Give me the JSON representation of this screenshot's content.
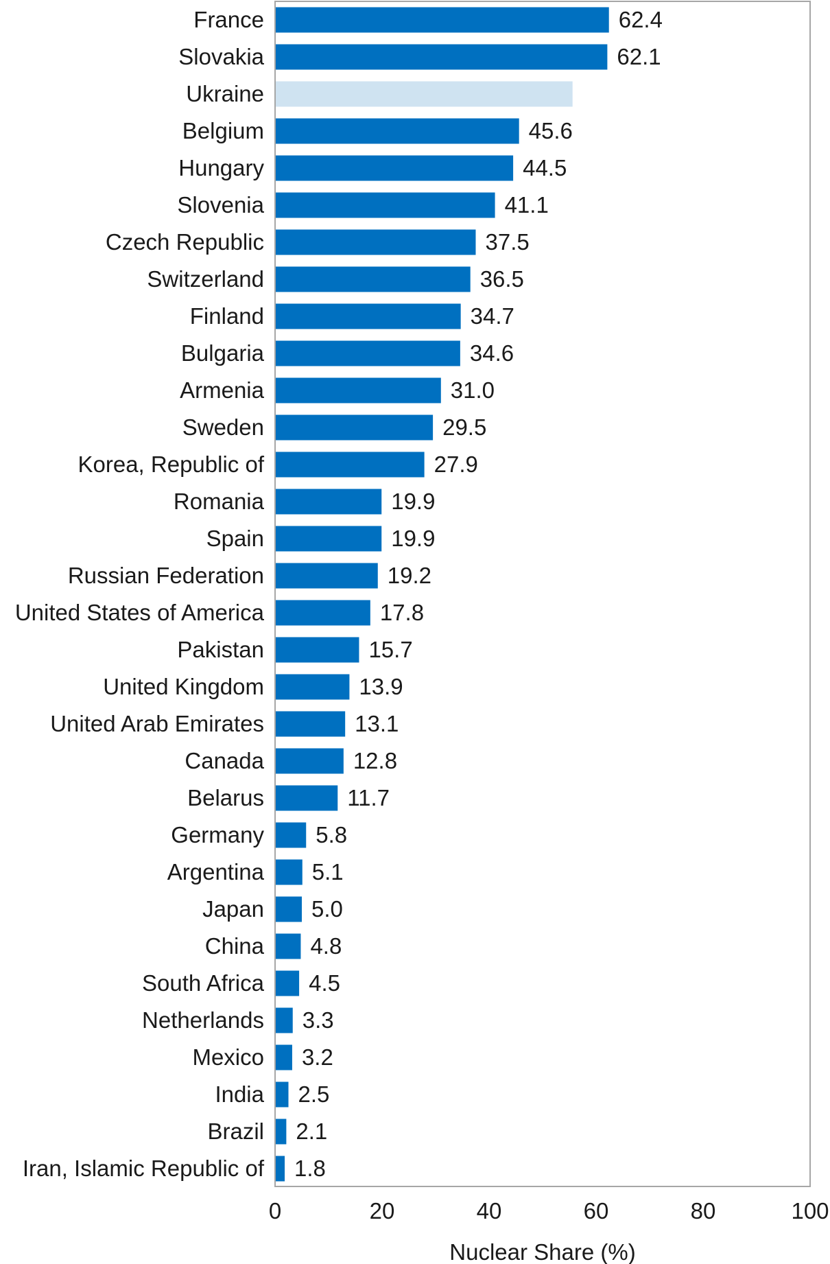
{
  "chart_data": {
    "type": "bar",
    "orientation": "horizontal",
    "title": "",
    "xlabel": "Nuclear Share (%)",
    "ylabel": "",
    "xlim": [
      0,
      100
    ],
    "xticks": [
      0,
      20,
      40,
      60,
      80,
      100
    ],
    "grid": false,
    "legend": "none",
    "colors": {
      "bar": "#0070c0",
      "highlight": "#cfe3f1",
      "frame": "#a6a6a6"
    },
    "categories": [
      "France",
      "Slovakia",
      "Ukraine",
      "Belgium",
      "Hungary",
      "Slovenia",
      "Czech Republic",
      "Switzerland",
      "Finland",
      "Bulgaria",
      "Armenia",
      "Sweden",
      "Korea, Republic of",
      "Romania",
      "Spain",
      "Russian Federation",
      "United States of America",
      "Pakistan",
      "United Kingdom",
      "United Arab Emirates",
      "Canada",
      "Belarus",
      "Germany",
      "Argentina",
      "Japan",
      "China",
      "South Africa",
      "Netherlands",
      "Mexico",
      "India",
      "Brazil",
      "Iran, Islamic Republic of"
    ],
    "values": [
      62.4,
      62.1,
      55.6,
      45.6,
      44.5,
      41.1,
      37.5,
      36.5,
      34.7,
      34.6,
      31.0,
      29.5,
      27.9,
      19.9,
      19.9,
      19.2,
      17.8,
      15.7,
      13.9,
      13.1,
      12.8,
      11.7,
      5.8,
      5.1,
      5.0,
      4.8,
      4.5,
      3.3,
      3.2,
      2.5,
      2.1,
      1.8
    ],
    "value_labels": [
      "62.4",
      "62.1",
      "",
      "45.6",
      "44.5",
      "41.1",
      "37.5",
      "36.5",
      "34.7",
      "34.6",
      "31.0",
      "29.5",
      "27.9",
      "19.9",
      "19.9",
      "19.2",
      "17.8",
      "15.7",
      "13.9",
      "13.1",
      "12.8",
      "11.7",
      "5.8",
      "5.1",
      "5.0",
      "4.8",
      "4.5",
      "3.3",
      "3.2",
      "2.5",
      "2.1",
      "1.8"
    ],
    "highlighted": [
      "Ukraine"
    ]
  }
}
